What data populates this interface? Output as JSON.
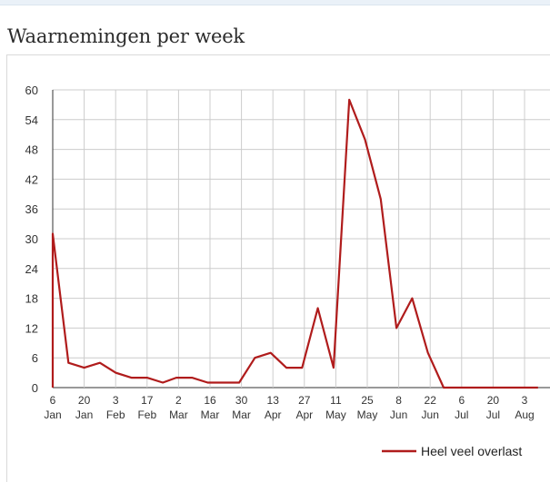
{
  "page": {
    "title": "Waarnemingen per week"
  },
  "chart_data": {
    "type": "line",
    "title": "Waarnemingen per week",
    "xlabel": "",
    "ylabel": "",
    "ylim": [
      0,
      60
    ],
    "y_ticks": [
      0,
      6,
      12,
      18,
      24,
      30,
      36,
      42,
      48,
      54,
      60
    ],
    "x_ticks": [
      {
        "day": "6",
        "month": "Jan"
      },
      {
        "day": "20",
        "month": "Jan"
      },
      {
        "day": "3",
        "month": "Feb"
      },
      {
        "day": "17",
        "month": "Feb"
      },
      {
        "day": "2",
        "month": "Mar"
      },
      {
        "day": "16",
        "month": "Mar"
      },
      {
        "day": "30",
        "month": "Mar"
      },
      {
        "day": "13",
        "month": "Apr"
      },
      {
        "day": "27",
        "month": "Apr"
      },
      {
        "day": "11",
        "month": "May"
      },
      {
        "day": "25",
        "month": "May"
      },
      {
        "day": "8",
        "month": "Jun"
      },
      {
        "day": "22",
        "month": "Jun"
      },
      {
        "day": "6",
        "month": "Jul"
      },
      {
        "day": "20",
        "month": "Jul"
      },
      {
        "day": "3",
        "month": "Aug"
      }
    ],
    "grid": true,
    "legend_position": "bottom-right",
    "series": [
      {
        "name": "Heel veel overlast",
        "color": "#b01c1c",
        "points": [
          {
            "date": "2014-01-06",
            "value": 0
          },
          {
            "date": "2014-01-06",
            "value": 31
          },
          {
            "date": "2014-01-13",
            "value": 5
          },
          {
            "date": "2014-01-20",
            "value": 4
          },
          {
            "date": "2014-01-27",
            "value": 5
          },
          {
            "date": "2014-02-03",
            "value": 3
          },
          {
            "date": "2014-02-10",
            "value": 2
          },
          {
            "date": "2014-02-17",
            "value": 2
          },
          {
            "date": "2014-02-24",
            "value": 1
          },
          {
            "date": "2014-03-02",
            "value": 2
          },
          {
            "date": "2014-03-09",
            "value": 2
          },
          {
            "date": "2014-03-16",
            "value": 1
          },
          {
            "date": "2014-03-23",
            "value": 1
          },
          {
            "date": "2014-03-30",
            "value": 1
          },
          {
            "date": "2014-04-06",
            "value": 6
          },
          {
            "date": "2014-04-13",
            "value": 7
          },
          {
            "date": "2014-04-20",
            "value": 4
          },
          {
            "date": "2014-04-27",
            "value": 4
          },
          {
            "date": "2014-05-04",
            "value": 16
          },
          {
            "date": "2014-05-11",
            "value": 4
          },
          {
            "date": "2014-05-18",
            "value": 58
          },
          {
            "date": "2014-05-25",
            "value": 50
          },
          {
            "date": "2014-06-01",
            "value": 38
          },
          {
            "date": "2014-06-08",
            "value": 12
          },
          {
            "date": "2014-06-15",
            "value": 18
          },
          {
            "date": "2014-06-22",
            "value": 7
          },
          {
            "date": "2014-06-29",
            "value": 0
          },
          {
            "date": "2014-07-06",
            "value": 0
          },
          {
            "date": "2014-07-13",
            "value": 0
          },
          {
            "date": "2014-07-20",
            "value": 0
          },
          {
            "date": "2014-07-27",
            "value": 0
          },
          {
            "date": "2014-08-03",
            "value": 0
          },
          {
            "date": "2014-08-10",
            "value": 0
          }
        ]
      }
    ]
  }
}
